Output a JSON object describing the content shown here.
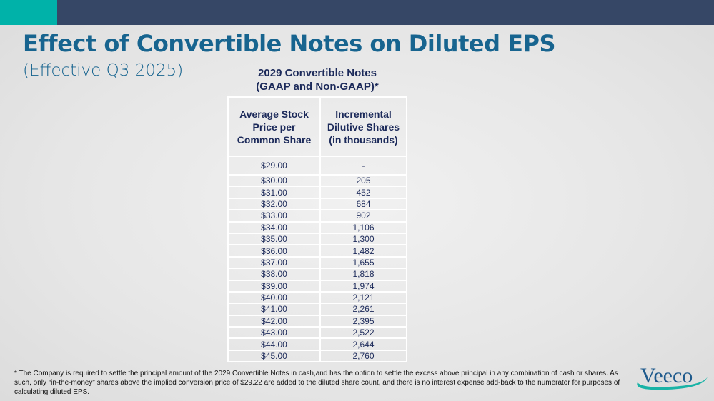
{
  "title": "Effect of Convertible Notes on Diluted EPS",
  "subtitle": "(Effective Q3 2025)",
  "table": {
    "title_line1": "2029 Convertible Notes",
    "title_line2": "(GAAP and Non-GAAP)*",
    "headers": [
      "Average Stock Price per Common Share",
      "Incremental Dilutive Shares (in thousands)"
    ],
    "rows": [
      [
        "$29.00",
        "-"
      ],
      [
        "$30.00",
        "205"
      ],
      [
        "$31.00",
        "452"
      ],
      [
        "$32.00",
        "684"
      ],
      [
        "$33.00",
        "902"
      ],
      [
        "$34.00",
        "1,106"
      ],
      [
        "$35.00",
        "1,300"
      ],
      [
        "$36.00",
        "1,482"
      ],
      [
        "$37.00",
        "1,655"
      ],
      [
        "$38.00",
        "1,818"
      ],
      [
        "$39.00",
        "1,974"
      ],
      [
        "$40.00",
        "2,121"
      ],
      [
        "$41.00",
        "2,261"
      ],
      [
        "$42.00",
        "2,395"
      ],
      [
        "$43.00",
        "2,522"
      ],
      [
        "$44.00",
        "2,644"
      ],
      [
        "$45.00",
        "2,760"
      ]
    ]
  },
  "footnote": "* The Company is required to settle the principal amount of the 2029 Convertible Notes in cash,and has the option to settle the excess above principal in any combination of cash or shares. As such, only “in-the-money” shares above the implied conversion price of $29.22 are added to the diluted share count, and there is no interest expense add-back to the numerator for purposes of calculating diluted EPS.",
  "logo": "Veeco",
  "colors": {
    "navy": "#364766",
    "teal": "#00b2a9",
    "title": "#17648f"
  }
}
